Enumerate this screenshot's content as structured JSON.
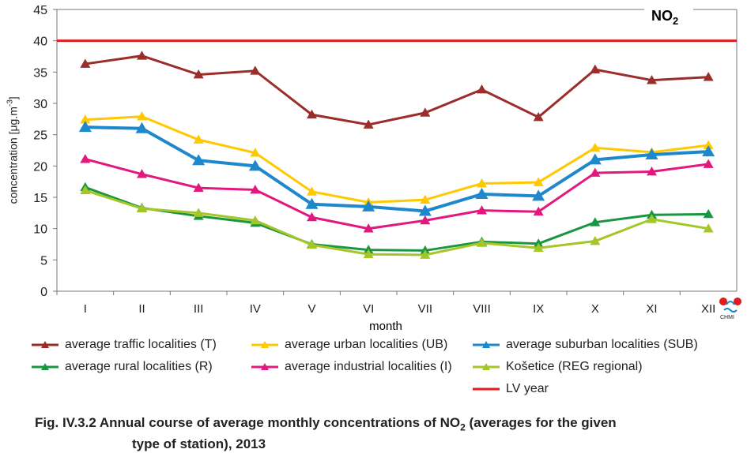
{
  "chart_data": {
    "type": "line",
    "title": "NO",
    "title_sub": "2",
    "xlabel": "month",
    "ylabel": "concentration [μg.m-3]",
    "ylabel_main": "concentration [μg.m",
    "ylabel_sup": "-3",
    "ylabel_end": "]",
    "ylim": [
      0,
      45
    ],
    "yticks": [
      0,
      5,
      10,
      15,
      20,
      25,
      30,
      35,
      40,
      45
    ],
    "categories": [
      "I",
      "II",
      "III",
      "IV",
      "V",
      "VI",
      "VII",
      "VIII",
      "IX",
      "X",
      "XI",
      "XII"
    ],
    "grid": false,
    "legend_position": "bottom",
    "series": [
      {
        "name": "average traffic localities (T)",
        "color": "#9b2d2a",
        "values": [
          36.3,
          37.6,
          34.6,
          35.2,
          28.2,
          26.6,
          28.5,
          32.2,
          27.8,
          35.4,
          33.7,
          34.2
        ]
      },
      {
        "name": "average urban localities (UB)",
        "color": "#ffc800",
        "values": [
          27.4,
          27.9,
          24.2,
          22.1,
          15.9,
          14.2,
          14.6,
          17.2,
          17.4,
          22.9,
          22.2,
          23.3
        ]
      },
      {
        "name": "average suburban localities (SUB)",
        "color": "#1e88cc",
        "values": [
          26.2,
          26.0,
          20.9,
          20.0,
          13.9,
          13.5,
          12.8,
          15.5,
          15.2,
          21.0,
          21.8,
          22.3
        ]
      },
      {
        "name": "average rural localities (R)",
        "color": "#1a9641",
        "values": [
          16.6,
          13.3,
          12.0,
          10.9,
          7.5,
          6.6,
          6.5,
          7.9,
          7.6,
          11.0,
          12.2,
          12.3
        ]
      },
      {
        "name": "average industrial localities (I)",
        "color": "#e3187f",
        "values": [
          21.1,
          18.7,
          16.5,
          16.2,
          11.8,
          10.0,
          11.3,
          12.9,
          12.7,
          18.9,
          19.1,
          20.3
        ]
      },
      {
        "name": "Košetice (REG regional)",
        "color": "#a5c628",
        "values": [
          16.1,
          13.2,
          12.5,
          11.3,
          7.4,
          5.9,
          5.8,
          7.7,
          6.9,
          8.0,
          11.5,
          10.0
        ]
      }
    ],
    "limit_line": {
      "name": "LV year",
      "color": "#e31a1c",
      "value": 40
    }
  },
  "logo_text": "CHMI",
  "caption": {
    "line1_a": "Fig. IV.3.2  Annual course of average monthly concentrations of NO",
    "line1_sub": "2",
    "line1_b": " (averages for the given",
    "line2": "type of station), 2013"
  }
}
